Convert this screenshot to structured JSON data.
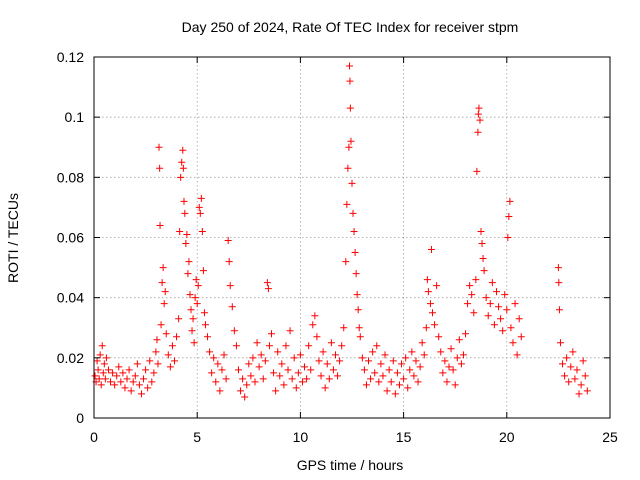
{
  "chart_data": {
    "type": "scatter",
    "title": "Day 250 of 2024, Rate Of TEC Index for receiver stpm",
    "xlabel": "GPS time / hours",
    "ylabel": "ROTI / TECUs",
    "xlim": [
      0,
      25
    ],
    "ylim": [
      0,
      0.12
    ],
    "xticks": [
      0,
      5,
      10,
      15,
      20,
      25
    ],
    "xtick_labels": [
      "0",
      "5",
      "10",
      "15",
      "20",
      "25"
    ],
    "yticks": [
      0,
      0.02,
      0.04,
      0.06,
      0.08,
      0.1,
      0.12
    ],
    "ytick_labels": [
      "0",
      "0.02",
      "0.04",
      "0.06",
      "0.08",
      "0.1",
      "0.12"
    ],
    "grid": true,
    "marker": "+",
    "color": "#ff0000",
    "series": [
      {
        "name": "ROTI",
        "points": [
          [
            0.05,
            0.014
          ],
          [
            0.1,
            0.012
          ],
          [
            0.15,
            0.019
          ],
          [
            0.2,
            0.016
          ],
          [
            0.25,
            0.013
          ],
          [
            0.3,
            0.021
          ],
          [
            0.35,
            0.011
          ],
          [
            0.4,
            0.024
          ],
          [
            0.45,
            0.015
          ],
          [
            0.5,
            0.018
          ],
          [
            0.55,
            0.013
          ],
          [
            0.6,
            0.02
          ],
          [
            0.7,
            0.016
          ],
          [
            0.8,
            0.012
          ],
          [
            0.9,
            0.015
          ],
          [
            1.0,
            0.011
          ],
          [
            1.1,
            0.014
          ],
          [
            1.2,
            0.017
          ],
          [
            1.3,
            0.012
          ],
          [
            1.4,
            0.015
          ],
          [
            1.5,
            0.01
          ],
          [
            1.6,
            0.013
          ],
          [
            1.7,
            0.016
          ],
          [
            1.8,
            0.009
          ],
          [
            1.9,
            0.012
          ],
          [
            2.0,
            0.014
          ],
          [
            2.1,
            0.018
          ],
          [
            2.2,
            0.011
          ],
          [
            2.3,
            0.008
          ],
          [
            2.4,
            0.013
          ],
          [
            2.5,
            0.016
          ],
          [
            2.6,
            0.01
          ],
          [
            2.7,
            0.019
          ],
          [
            2.8,
            0.012
          ],
          [
            2.9,
            0.015
          ],
          [
            3.0,
            0.022
          ],
          [
            3.05,
            0.026
          ],
          [
            3.1,
            0.018
          ],
          [
            3.15,
            0.09
          ],
          [
            3.18,
            0.083
          ],
          [
            3.2,
            0.064
          ],
          [
            3.25,
            0.031
          ],
          [
            3.3,
            0.045
          ],
          [
            3.35,
            0.05
          ],
          [
            3.4,
            0.038
          ],
          [
            3.45,
            0.042
          ],
          [
            3.5,
            0.028
          ],
          [
            3.6,
            0.021
          ],
          [
            3.7,
            0.017
          ],
          [
            3.8,
            0.024
          ],
          [
            3.9,
            0.019
          ],
          [
            4.0,
            0.027
          ],
          [
            4.1,
            0.033
          ],
          [
            4.15,
            0.062
          ],
          [
            4.2,
            0.08
          ],
          [
            4.25,
            0.085
          ],
          [
            4.3,
            0.089
          ],
          [
            4.33,
            0.083
          ],
          [
            4.36,
            0.072
          ],
          [
            4.4,
            0.068
          ],
          [
            4.45,
            0.058
          ],
          [
            4.5,
            0.061
          ],
          [
            4.55,
            0.048
          ],
          [
            4.6,
            0.052
          ],
          [
            4.65,
            0.041
          ],
          [
            4.7,
            0.036
          ],
          [
            4.75,
            0.029
          ],
          [
            4.8,
            0.033
          ],
          [
            4.85,
            0.025
          ],
          [
            4.9,
            0.04
          ],
          [
            4.95,
            0.046
          ],
          [
            5.0,
            0.038
          ],
          [
            5.05,
            0.044
          ],
          [
            5.1,
            0.07
          ],
          [
            5.15,
            0.068
          ],
          [
            5.2,
            0.073
          ],
          [
            5.25,
            0.062
          ],
          [
            5.3,
            0.049
          ],
          [
            5.35,
            0.035
          ],
          [
            5.4,
            0.031
          ],
          [
            5.5,
            0.027
          ],
          [
            5.6,
            0.022
          ],
          [
            5.7,
            0.015
          ],
          [
            5.8,
            0.02
          ],
          [
            5.9,
            0.012
          ],
          [
            6.0,
            0.018
          ],
          [
            6.1,
            0.009
          ],
          [
            6.2,
            0.016
          ],
          [
            6.3,
            0.021
          ],
          [
            6.4,
            0.013
          ],
          [
            6.5,
            0.059
          ],
          [
            6.55,
            0.052
          ],
          [
            6.6,
            0.044
          ],
          [
            6.7,
            0.037
          ],
          [
            6.8,
            0.029
          ],
          [
            6.9,
            0.024
          ],
          [
            7.0,
            0.016
          ],
          [
            7.1,
            0.009
          ],
          [
            7.2,
            0.013
          ],
          [
            7.3,
            0.007
          ],
          [
            7.4,
            0.011
          ],
          [
            7.5,
            0.018
          ],
          [
            7.6,
            0.014
          ],
          [
            7.7,
            0.02
          ],
          [
            7.8,
            0.012
          ],
          [
            7.9,
            0.025
          ],
          [
            8.0,
            0.017
          ],
          [
            8.1,
            0.021
          ],
          [
            8.2,
            0.013
          ],
          [
            8.3,
            0.019
          ],
          [
            8.4,
            0.045
          ],
          [
            8.45,
            0.043
          ],
          [
            8.5,
            0.024
          ],
          [
            8.6,
            0.028
          ],
          [
            8.7,
            0.015
          ],
          [
            8.8,
            0.009
          ],
          [
            8.9,
            0.022
          ],
          [
            9.0,
            0.014
          ],
          [
            9.1,
            0.018
          ],
          [
            9.2,
            0.011
          ],
          [
            9.3,
            0.024
          ],
          [
            9.4,
            0.016
          ],
          [
            9.5,
            0.029
          ],
          [
            9.6,
            0.013
          ],
          [
            9.7,
            0.02
          ],
          [
            9.8,
            0.01
          ],
          [
            9.9,
            0.015
          ],
          [
            10.0,
            0.021
          ],
          [
            10.1,
            0.012
          ],
          [
            10.2,
            0.017
          ],
          [
            10.3,
            0.013
          ],
          [
            10.4,
            0.024
          ],
          [
            10.5,
            0.016
          ],
          [
            10.6,
            0.031
          ],
          [
            10.7,
            0.034
          ],
          [
            10.8,
            0.027
          ],
          [
            10.9,
            0.019
          ],
          [
            11.0,
            0.014
          ],
          [
            11.1,
            0.022
          ],
          [
            11.2,
            0.01
          ],
          [
            11.3,
            0.018
          ],
          [
            11.4,
            0.013
          ],
          [
            11.5,
            0.025
          ],
          [
            11.6,
            0.016
          ],
          [
            11.7,
            0.021
          ],
          [
            11.8,
            0.014
          ],
          [
            11.9,
            0.019
          ],
          [
            12.0,
            0.024
          ],
          [
            12.1,
            0.03
          ],
          [
            12.2,
            0.052
          ],
          [
            12.25,
            0.071
          ],
          [
            12.3,
            0.083
          ],
          [
            12.35,
            0.09
          ],
          [
            12.38,
            0.117
          ],
          [
            12.4,
            0.112
          ],
          [
            12.42,
            0.103
          ],
          [
            12.45,
            0.092
          ],
          [
            12.5,
            0.078
          ],
          [
            12.55,
            0.068
          ],
          [
            12.6,
            0.062
          ],
          [
            12.65,
            0.055
          ],
          [
            12.7,
            0.048
          ],
          [
            12.75,
            0.041
          ],
          [
            12.8,
            0.036
          ],
          [
            12.85,
            0.03
          ],
          [
            12.9,
            0.027
          ],
          [
            13.0,
            0.02
          ],
          [
            13.1,
            0.016
          ],
          [
            13.2,
            0.011
          ],
          [
            13.3,
            0.019
          ],
          [
            13.4,
            0.013
          ],
          [
            13.5,
            0.022
          ],
          [
            13.6,
            0.015
          ],
          [
            13.7,
            0.024
          ],
          [
            13.8,
            0.012
          ],
          [
            13.9,
            0.018
          ],
          [
            14.0,
            0.014
          ],
          [
            14.1,
            0.021
          ],
          [
            14.2,
            0.009
          ],
          [
            14.3,
            0.016
          ],
          [
            14.4,
            0.012
          ],
          [
            14.5,
            0.019
          ],
          [
            14.6,
            0.008
          ],
          [
            14.7,
            0.015
          ],
          [
            14.8,
            0.011
          ],
          [
            14.9,
            0.018
          ],
          [
            15.0,
            0.013
          ],
          [
            15.1,
            0.02
          ],
          [
            15.2,
            0.01
          ],
          [
            15.3,
            0.016
          ],
          [
            15.4,
            0.022
          ],
          [
            15.5,
            0.014
          ],
          [
            15.6,
            0.019
          ],
          [
            15.7,
            0.012
          ],
          [
            15.8,
            0.017
          ],
          [
            15.9,
            0.025
          ],
          [
            16.0,
            0.021
          ],
          [
            16.1,
            0.03
          ],
          [
            16.15,
            0.046
          ],
          [
            16.2,
            0.042
          ],
          [
            16.3,
            0.038
          ],
          [
            16.35,
            0.056
          ],
          [
            16.4,
            0.035
          ],
          [
            16.5,
            0.031
          ],
          [
            16.6,
            0.044
          ],
          [
            16.7,
            0.027
          ],
          [
            16.8,
            0.022
          ],
          [
            16.9,
            0.015
          ],
          [
            17.0,
            0.019
          ],
          [
            17.1,
            0.012
          ],
          [
            17.2,
            0.017
          ],
          [
            17.3,
            0.023
          ],
          [
            17.4,
            0.016
          ],
          [
            17.5,
            0.011
          ],
          [
            17.6,
            0.02
          ],
          [
            17.7,
            0.026
          ],
          [
            17.8,
            0.018
          ],
          [
            17.9,
            0.021
          ],
          [
            18.0,
            0.028
          ],
          [
            18.1,
            0.038
          ],
          [
            18.2,
            0.044
          ],
          [
            18.3,
            0.041
          ],
          [
            18.4,
            0.035
          ],
          [
            18.5,
            0.046
          ],
          [
            18.55,
            0.082
          ],
          [
            18.6,
            0.095
          ],
          [
            18.62,
            0.101
          ],
          [
            18.65,
            0.103
          ],
          [
            18.7,
            0.099
          ],
          [
            18.75,
            0.062
          ],
          [
            18.8,
            0.058
          ],
          [
            18.85,
            0.053
          ],
          [
            18.9,
            0.049
          ],
          [
            19.0,
            0.04
          ],
          [
            19.1,
            0.034
          ],
          [
            19.2,
            0.038
          ],
          [
            19.3,
            0.045
          ],
          [
            19.4,
            0.031
          ],
          [
            19.5,
            0.042
          ],
          [
            19.6,
            0.037
          ],
          [
            19.7,
            0.033
          ],
          [
            19.8,
            0.029
          ],
          [
            19.9,
            0.041
          ],
          [
            20.0,
            0.036
          ],
          [
            20.05,
            0.06
          ],
          [
            20.1,
            0.067
          ],
          [
            20.15,
            0.072
          ],
          [
            20.2,
            0.03
          ],
          [
            20.3,
            0.025
          ],
          [
            20.4,
            0.038
          ],
          [
            20.5,
            0.021
          ],
          [
            20.6,
            0.033
          ],
          [
            20.7,
            0.027
          ],
          [
            22.5,
            0.05
          ],
          [
            22.52,
            0.045
          ],
          [
            22.55,
            0.036
          ],
          [
            22.6,
            0.025
          ],
          [
            22.7,
            0.018
          ],
          [
            22.8,
            0.014
          ],
          [
            22.9,
            0.02
          ],
          [
            23.0,
            0.012
          ],
          [
            23.1,
            0.017
          ],
          [
            23.2,
            0.022
          ],
          [
            23.3,
            0.013
          ],
          [
            23.4,
            0.016
          ],
          [
            23.5,
            0.008
          ],
          [
            23.6,
            0.011
          ],
          [
            23.7,
            0.019
          ],
          [
            23.8,
            0.014
          ],
          [
            23.9,
            0.009
          ]
        ]
      }
    ]
  }
}
